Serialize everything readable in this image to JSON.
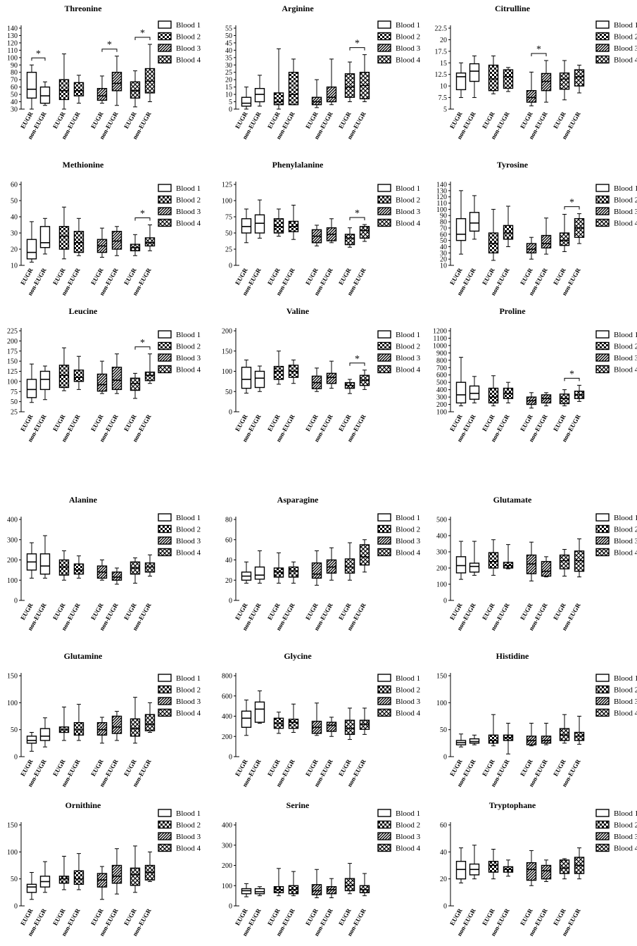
{
  "legend": [
    "Blood 1",
    "Blood 2",
    "Blood 3",
    "Blood 4"
  ],
  "groups": [
    "EUGR",
    "non-EUGR"
  ],
  "chart_data": [
    {
      "type": "box",
      "title": "Threonine",
      "yticks": [
        30,
        40,
        50,
        60,
        70,
        80,
        90,
        100,
        110,
        120,
        130,
        140
      ],
      "ylim": [
        30,
        140
      ],
      "sig": [
        1,
        3,
        4
      ],
      "boxes": [
        [
          30,
          45,
          57,
          80,
          90
        ],
        [
          35,
          38,
          48,
          60,
          67
        ],
        [
          30,
          43,
          55,
          70,
          105
        ],
        [
          38,
          48,
          55,
          66,
          76
        ],
        [
          38,
          42,
          48,
          58,
          75
        ],
        [
          35,
          55,
          65,
          80,
          102
        ],
        [
          33,
          45,
          55,
          67,
          82
        ],
        [
          40,
          52,
          68,
          85,
          118
        ]
      ]
    },
    {
      "type": "box",
      "title": "Arginine",
      "yticks": [
        0,
        5,
        10,
        15,
        20,
        25,
        30,
        35,
        40,
        45,
        50,
        55
      ],
      "ylim": [
        0,
        55
      ],
      "sig": [
        4
      ],
      "boxes": [
        [
          0,
          2,
          4,
          8,
          15
        ],
        [
          2,
          5,
          10,
          14,
          23
        ],
        [
          0,
          3,
          5,
          11,
          41
        ],
        [
          3,
          3,
          10,
          25,
          34
        ],
        [
          1,
          3,
          5,
          8,
          20
        ],
        [
          3,
          5,
          8,
          15,
          34
        ],
        [
          5,
          8,
          15,
          24,
          32
        ],
        [
          5,
          7,
          16,
          25,
          37
        ]
      ]
    },
    {
      "type": "box",
      "title": "Citrulline",
      "yticks": [
        5,
        7.5,
        10,
        12.5,
        15,
        17.5,
        20,
        22.5
      ],
      "ylim": [
        5,
        22.5
      ],
      "sig": [
        3
      ],
      "boxes": [
        [
          7.5,
          9.2,
          12,
          12.8,
          15
        ],
        [
          7.5,
          11,
          13.2,
          14.8,
          16.5
        ],
        [
          8.3,
          9,
          11.5,
          14.5,
          16.5
        ],
        [
          8.8,
          9.5,
          12,
          13.5,
          14
        ],
        [
          5.7,
          6.5,
          7.5,
          9,
          13
        ],
        [
          6.5,
          9,
          11,
          12.7,
          15.5
        ],
        [
          7,
          9.3,
          11.5,
          12.8,
          15.5
        ],
        [
          8.5,
          10,
          12,
          13.5,
          14.5
        ]
      ]
    },
    {
      "type": "box",
      "title": "Methionine",
      "yticks": [
        10,
        20,
        30,
        40,
        50,
        60
      ],
      "ylim": [
        10,
        60
      ],
      "sig": [
        4
      ],
      "boxes": [
        [
          12,
          14,
          18,
          26,
          37
        ],
        [
          17,
          21,
          24,
          34,
          39
        ],
        [
          14,
          20,
          28,
          34,
          46
        ],
        [
          16,
          18,
          24,
          31,
          39
        ],
        [
          15,
          18,
          22,
          26,
          33
        ],
        [
          16,
          20,
          25,
          31,
          34
        ],
        [
          16,
          19,
          21,
          23,
          29
        ],
        [
          19,
          22,
          24,
          27,
          35
        ]
      ]
    },
    {
      "type": "box",
      "title": "Phenylalanine",
      "yticks": [
        0,
        25,
        50,
        75,
        100,
        125
      ],
      "ylim": [
        0,
        125
      ],
      "sig": [
        4
      ],
      "boxes": [
        [
          35,
          50,
          60,
          72,
          87
        ],
        [
          42,
          50,
          65,
          78,
          101
        ],
        [
          45,
          50,
          60,
          72,
          87
        ],
        [
          40,
          52,
          60,
          68,
          93
        ],
        [
          30,
          35,
          45,
          55,
          62
        ],
        [
          35,
          38,
          48,
          58,
          72
        ],
        [
          28,
          32,
          42,
          48,
          58
        ],
        [
          37,
          42,
          54,
          60,
          63
        ]
      ]
    },
    {
      "type": "box",
      "title": "Tyrosine",
      "yticks": [
        10,
        20,
        30,
        40,
        50,
        60,
        70,
        80,
        90,
        100,
        110,
        120,
        130,
        140
      ],
      "ylim": [
        10,
        140
      ],
      "sig": [
        4
      ],
      "boxes": [
        [
          28,
          50,
          60,
          85,
          130
        ],
        [
          52,
          65,
          78,
          95,
          122
        ],
        [
          18,
          30,
          45,
          62,
          100
        ],
        [
          40,
          52,
          62,
          74,
          105
        ],
        [
          20,
          30,
          36,
          45,
          55
        ],
        [
          28,
          38,
          45,
          58,
          86
        ],
        [
          32,
          42,
          50,
          62,
          92
        ],
        [
          45,
          55,
          70,
          85,
          93
        ]
      ]
    },
    {
      "type": "box",
      "title": "Leucine",
      "yticks": [
        25,
        50,
        75,
        100,
        125,
        150,
        175,
        200,
        225
      ],
      "ylim": [
        25,
        225
      ],
      "sig": [
        4
      ],
      "boxes": [
        [
          48,
          60,
          80,
          105,
          143
        ],
        [
          55,
          80,
          105,
          125,
          138
        ],
        [
          77,
          85,
          115,
          140,
          183
        ],
        [
          80,
          100,
          110,
          128,
          162
        ],
        [
          70,
          76,
          92,
          118,
          150
        ],
        [
          70,
          80,
          103,
          135,
          168
        ],
        [
          58,
          78,
          95,
          108,
          120
        ],
        [
          95,
          102,
          115,
          123,
          168
        ]
      ]
    },
    {
      "type": "box",
      "title": "Valine",
      "yticks": [
        0,
        50,
        100,
        150,
        200
      ],
      "ylim": [
        0,
        200
      ],
      "sig": [
        4
      ],
      "boxes": [
        [
          46,
          58,
          80,
          110,
          128
        ],
        [
          50,
          60,
          83,
          100,
          113
        ],
        [
          68,
          80,
          100,
          112,
          150
        ],
        [
          70,
          85,
          100,
          115,
          128
        ],
        [
          50,
          57,
          72,
          88,
          108
        ],
        [
          58,
          70,
          85,
          95,
          125
        ],
        [
          45,
          58,
          65,
          72,
          80
        ],
        [
          55,
          65,
          78,
          90,
          103
        ]
      ]
    },
    {
      "type": "box",
      "title": "Proline",
      "yticks": [
        100,
        200,
        300,
        400,
        500,
        600,
        700,
        800,
        900,
        1000,
        1100,
        1200
      ],
      "ylim": [
        100,
        1200
      ],
      "sig": [
        4
      ],
      "boxes": [
        [
          180,
          220,
          330,
          500,
          840
        ],
        [
          220,
          270,
          350,
          450,
          580
        ],
        [
          180,
          220,
          300,
          420,
          590
        ],
        [
          220,
          280,
          350,
          420,
          500
        ],
        [
          150,
          200,
          250,
          300,
          360
        ],
        [
          180,
          220,
          280,
          330,
          360
        ],
        [
          180,
          210,
          280,
          340,
          400
        ],
        [
          240,
          280,
          330,
          380,
          460
        ]
      ]
    },
    {
      "type": "box",
      "title": "Alanine",
      "yticks": [
        0,
        100,
        200,
        300,
        400
      ],
      "ylim": [
        0,
        400
      ],
      "sig": [],
      "boxes": [
        [
          110,
          150,
          190,
          230,
          285
        ],
        [
          110,
          130,
          170,
          230,
          320
        ],
        [
          100,
          125,
          165,
          200,
          245
        ],
        [
          110,
          130,
          150,
          180,
          220
        ],
        [
          100,
          110,
          140,
          170,
          200
        ],
        [
          80,
          100,
          115,
          140,
          160
        ],
        [
          85,
          130,
          160,
          190,
          210
        ],
        [
          120,
          140,
          165,
          185,
          225
        ]
      ]
    },
    {
      "type": "box",
      "title": "Asparagine",
      "yticks": [
        0,
        20,
        40,
        60,
        80
      ],
      "ylim": [
        0,
        80
      ],
      "sig": [],
      "boxes": [
        [
          17,
          20,
          24,
          28,
          38
        ],
        [
          17,
          21,
          25,
          33,
          49
        ],
        [
          17,
          23,
          28,
          32,
          47
        ],
        [
          17,
          23,
          29,
          33,
          38
        ],
        [
          15,
          22,
          26,
          37,
          49
        ],
        [
          20,
          27,
          33,
          40,
          52
        ],
        [
          20,
          27,
          33,
          41,
          57
        ],
        [
          28,
          35,
          43,
          55,
          60
        ]
      ]
    },
    {
      "type": "box",
      "title": "Glutamate",
      "yticks": [
        0,
        100,
        200,
        300,
        400,
        500
      ],
      "ylim": [
        0,
        500
      ],
      "sig": [],
      "boxes": [
        [
          130,
          170,
          215,
          270,
          365
        ],
        [
          155,
          175,
          210,
          230,
          365
        ],
        [
          155,
          200,
          240,
          295,
          375
        ],
        [
          195,
          200,
          215,
          235,
          345
        ],
        [
          120,
          165,
          225,
          280,
          360
        ],
        [
          145,
          150,
          180,
          240,
          270
        ],
        [
          150,
          195,
          245,
          280,
          315
        ],
        [
          145,
          180,
          245,
          305,
          380
        ]
      ]
    },
    {
      "type": "box",
      "title": "Glutamine",
      "yticks": [
        0,
        50,
        100,
        150
      ],
      "ylim": [
        0,
        150
      ],
      "sig": [],
      "boxes": [
        [
          10,
          25,
          30,
          38,
          45
        ],
        [
          18,
          30,
          38,
          52,
          72
        ],
        [
          30,
          45,
          50,
          55,
          92
        ],
        [
          30,
          40,
          50,
          63,
          97
        ],
        [
          25,
          40,
          50,
          63,
          73
        ],
        [
          30,
          43,
          55,
          75,
          84
        ],
        [
          25,
          38,
          52,
          70,
          110
        ],
        [
          45,
          48,
          60,
          78,
          100
        ]
      ]
    },
    {
      "type": "box",
      "title": "Glycine",
      "yticks": [
        0,
        200,
        400,
        600,
        800
      ],
      "ylim": [
        0,
        800
      ],
      "sig": [],
      "boxes": [
        [
          210,
          290,
          380,
          450,
          560
        ],
        [
          330,
          340,
          470,
          540,
          650
        ],
        [
          230,
          280,
          330,
          380,
          440
        ],
        [
          240,
          280,
          340,
          370,
          520
        ],
        [
          210,
          230,
          290,
          350,
          530
        ],
        [
          200,
          250,
          310,
          340,
          390
        ],
        [
          170,
          220,
          280,
          360,
          480
        ],
        [
          220,
          270,
          320,
          360,
          480
        ]
      ]
    },
    {
      "type": "box",
      "title": "Histidine",
      "yticks": [
        0,
        50,
        100,
        150
      ],
      "ylim": [
        0,
        150
      ],
      "sig": [],
      "boxes": [
        [
          18,
          22,
          26,
          30,
          42
        ],
        [
          22,
          25,
          28,
          33,
          40
        ],
        [
          20,
          25,
          30,
          40,
          78
        ],
        [
          5,
          30,
          35,
          40,
          62
        ],
        [
          20,
          22,
          30,
          38,
          62
        ],
        [
          22,
          25,
          30,
          38,
          62
        ],
        [
          25,
          30,
          40,
          52,
          78
        ],
        [
          23,
          30,
          38,
          45,
          75
        ]
      ]
    },
    {
      "type": "box",
      "title": "Ornithine",
      "yticks": [
        0,
        50,
        100,
        150
      ],
      "ylim": [
        0,
        150
      ],
      "sig": [],
      "boxes": [
        [
          12,
          25,
          35,
          40,
          62
        ],
        [
          25,
          35,
          45,
          55,
          82
        ],
        [
          30,
          42,
          50,
          55,
          92
        ],
        [
          30,
          40,
          50,
          65,
          97
        ],
        [
          12,
          35,
          48,
          60,
          73
        ],
        [
          22,
          42,
          55,
          75,
          106
        ],
        [
          25,
          38,
          58,
          70,
          111
        ],
        [
          45,
          48,
          62,
          75,
          100
        ]
      ]
    },
    {
      "type": "box",
      "title": "Serine",
      "yticks": [
        0,
        100,
        200,
        300,
        400
      ],
      "ylim": [
        0,
        400
      ],
      "sig": [],
      "boxes": [
        [
          45,
          60,
          75,
          85,
          110
        ],
        [
          50,
          60,
          70,
          85,
          95
        ],
        [
          50,
          65,
          80,
          95,
          185
        ],
        [
          50,
          60,
          80,
          100,
          170
        ],
        [
          40,
          55,
          75,
          105,
          180
        ],
        [
          40,
          60,
          80,
          95,
          135
        ],
        [
          60,
          75,
          100,
          135,
          210
        ],
        [
          50,
          65,
          80,
          100,
          160
        ]
      ]
    },
    {
      "type": "box",
      "title": "Tryptophane",
      "yticks": [
        0,
        20,
        40,
        60
      ],
      "ylim": [
        0,
        60
      ],
      "sig": [],
      "boxes": [
        [
          17,
          20,
          27,
          33,
          43
        ],
        [
          20,
          23,
          27,
          31,
          45
        ],
        [
          20,
          25,
          30,
          33,
          42
        ],
        [
          22,
          25,
          27,
          29,
          34
        ],
        [
          15,
          19,
          27,
          32,
          41
        ],
        [
          18,
          20,
          26,
          30,
          34
        ],
        [
          20,
          24,
          28,
          34,
          35
        ],
        [
          20,
          24,
          30,
          36,
          43
        ]
      ]
    }
  ]
}
